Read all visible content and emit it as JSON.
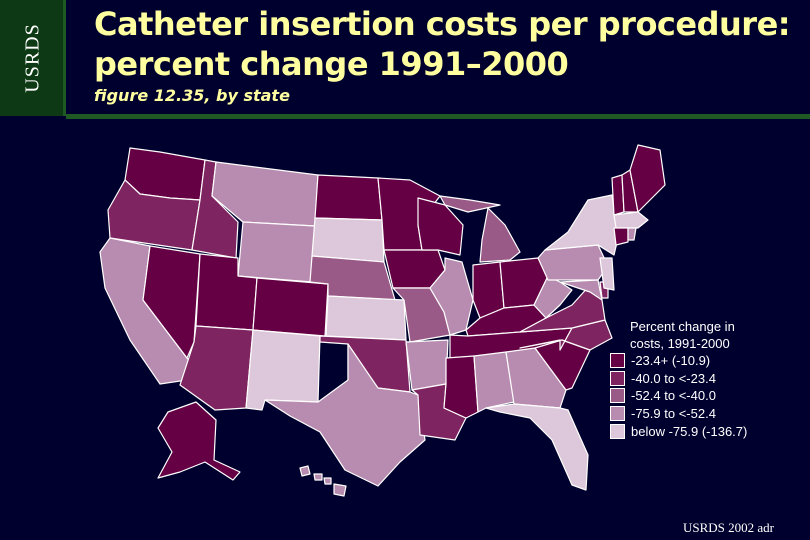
{
  "side_tag": "USRDS",
  "title_line1": "Catheter insertion costs per procedure:",
  "title_line2": "percent change 1991–2000",
  "subtitle": "figure 12.35, by state",
  "legend": {
    "title_line1": "Percent change in",
    "title_line2": "costs, 1991-2000",
    "items": [
      {
        "label": "-23.4+ (-10.9)",
        "color": "#660044"
      },
      {
        "label": "-40.0 to <-23.4",
        "color": "#7e2561"
      },
      {
        "label": "-52.4 to <-40.0",
        "color": "#9a5a88"
      },
      {
        "label": "-75.9 to <-52.4",
        "color": "#b88cb0"
      },
      {
        "label": "below -75.9 (-136.7)",
        "color": "#ddc7da"
      }
    ]
  },
  "credit": "USRDS 2002 adr",
  "colors": {
    "background": "#00002e",
    "title": "#ffffa0",
    "header_green": "#0d3a14",
    "state_border": "#ffffff"
  }
}
